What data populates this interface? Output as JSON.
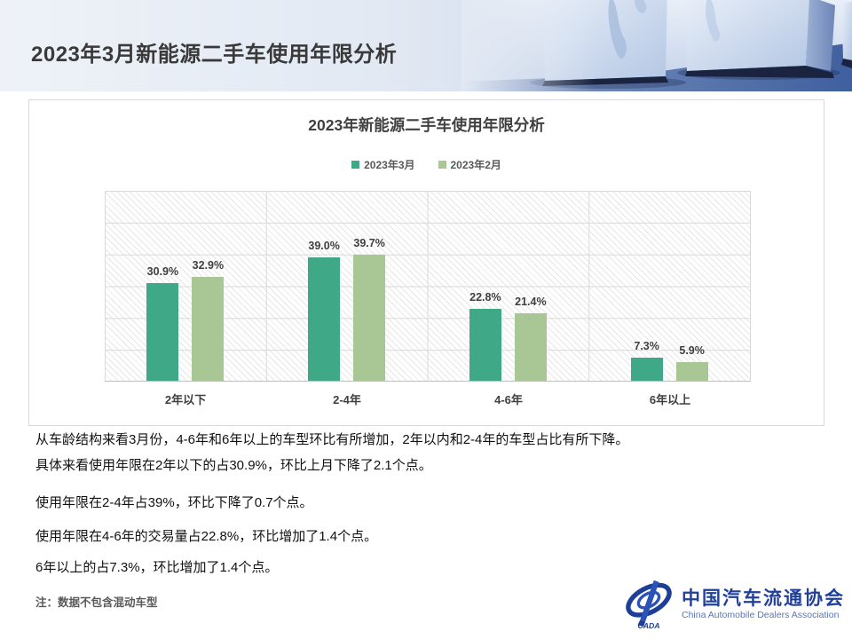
{
  "header": {
    "title": "2023年3月新能源二手车使用年限分析"
  },
  "chart_data": {
    "type": "bar",
    "title": "2023年新能源二手车使用年限分析",
    "categories": [
      "2年以下",
      "2-4年",
      "4-6年",
      "6年以上"
    ],
    "series": [
      {
        "name": "2023年3月",
        "color": "#3fa987",
        "values": [
          30.9,
          39.0,
          22.8,
          7.3
        ],
        "labels": [
          "30.9%",
          "39.0%",
          "22.8%",
          "7.3%"
        ]
      },
      {
        "name": "2023年2月",
        "color": "#a9c795",
        "values": [
          32.9,
          39.7,
          21.4,
          5.9
        ],
        "labels": [
          "32.9%",
          "39.7%",
          "21.4%",
          "5.9%"
        ]
      }
    ],
    "ylim": [
      0,
      60
    ],
    "y_gridline_step": 10,
    "grid": "horizontal gridlines every 10%, vertical category separators, diagonal hatch plot background",
    "legend_position": "top-center",
    "value_suffix": "%"
  },
  "body": {
    "paragraphs": [
      "从车龄结构来看3月份，4-6年和6年以上的车型环比有所增加，2年以内和2-4年的车型占比有所下降。",
      "具体来看使用年限在2年以下的占30.9%，环比上月下降了2.1个点。",
      "使用年限在2-4年占39%，环比下降了0.7个点。",
      "使用年限在4-6年的交易量占22.8%，环比增加了1.4个点。",
      "6年以上的占7.3%，环比增加了1.4个点。"
    ]
  },
  "footnote": "注：数据不包含混动车型",
  "logo": {
    "emblem_text": "CADA",
    "name_cn": "中国汽车流通协会",
    "name_en": "China Automobile Dealers Association"
  },
  "colors": {
    "series_march": "#3fa987",
    "series_february": "#a9c795",
    "header_text": "#3a3a3a",
    "logo_blue": "#21409a",
    "gridline": "#d9d9d9",
    "axis_line": "#bfbfbf"
  }
}
